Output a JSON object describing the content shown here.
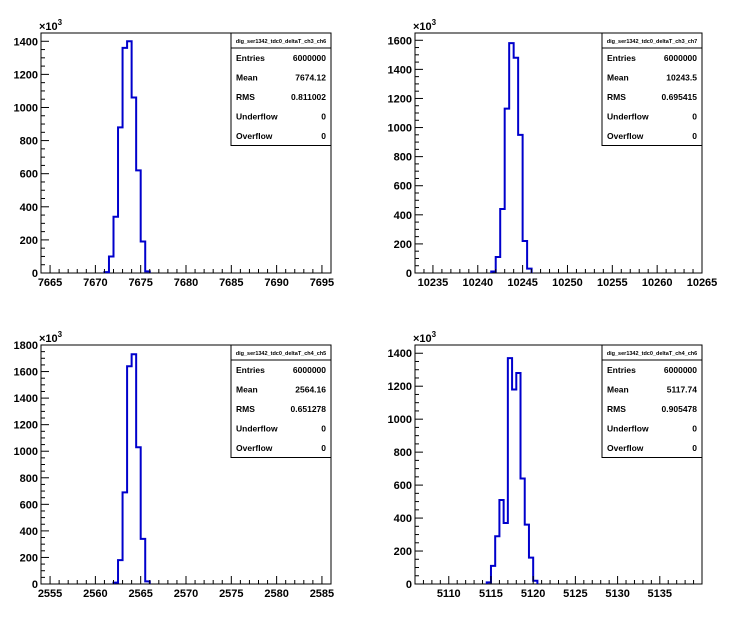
{
  "chart_data": [
    {
      "type": "histogram",
      "stats": {
        "title": "dig_ser1342_tdc0_deltaT_ch3_ch6",
        "rows": [
          {
            "label": "Entries",
            "value": "6000000"
          },
          {
            "label": "Mean",
            "value": "7674.12"
          },
          {
            "label": "RMS",
            "value": "0.811002"
          },
          {
            "label": "Underflow",
            "value": "0"
          },
          {
            "label": "Overflow",
            "value": "0"
          }
        ]
      },
      "xlim": [
        7664,
        7696
      ],
      "ylim": [
        0,
        1450
      ],
      "x_ticks": [
        7665,
        7670,
        7675,
        7680,
        7685,
        7690,
        7695
      ],
      "y_ticks": [
        0,
        200,
        400,
        600,
        800,
        1000,
        1200,
        1400
      ],
      "y_scale_label": "10",
      "y_scale_exp": "3",
      "bin_width": 0.5,
      "bins": [
        [
          7671.0,
          5
        ],
        [
          7671.5,
          100
        ],
        [
          7672.0,
          340
        ],
        [
          7672.5,
          880
        ],
        [
          7673.0,
          1360
        ],
        [
          7673.5,
          1400
        ],
        [
          7674.0,
          1060
        ],
        [
          7674.5,
          620
        ],
        [
          7675.0,
          190
        ],
        [
          7675.5,
          10
        ]
      ]
    },
    {
      "type": "histogram",
      "stats": {
        "title": "dig_ser1342_tdc0_deltaT_ch3_ch7",
        "rows": [
          {
            "label": "Entries",
            "value": "6000000"
          },
          {
            "label": "Mean",
            "value": "10243.5"
          },
          {
            "label": "RMS",
            "value": "0.695415"
          },
          {
            "label": "Underflow",
            "value": "0"
          },
          {
            "label": "Overflow",
            "value": "0"
          }
        ]
      },
      "xlim": [
        10233,
        10265
      ],
      "ylim": [
        0,
        1650
      ],
      "x_ticks": [
        10235,
        10240,
        10245,
        10250,
        10255,
        10260,
        10265
      ],
      "y_ticks": [
        0,
        200,
        400,
        600,
        800,
        1000,
        1200,
        1400,
        1600
      ],
      "y_scale_label": "10",
      "y_scale_exp": "3",
      "bin_width": 0.5,
      "bins": [
        [
          10241.5,
          10
        ],
        [
          10242.0,
          110
        ],
        [
          10242.5,
          440
        ],
        [
          10243.0,
          1130
        ],
        [
          10243.5,
          1580
        ],
        [
          10244.0,
          1480
        ],
        [
          10244.5,
          950
        ],
        [
          10245.0,
          220
        ],
        [
          10245.5,
          30
        ]
      ]
    },
    {
      "type": "histogram",
      "stats": {
        "title": "dig_ser1342_tdc0_deltaT_ch4_ch5",
        "rows": [
          {
            "label": "Entries",
            "value": "6000000"
          },
          {
            "label": "Mean",
            "value": "2564.16"
          },
          {
            "label": "RMS",
            "value": "0.651278"
          },
          {
            "label": "Underflow",
            "value": "0"
          },
          {
            "label": "Overflow",
            "value": "0"
          }
        ]
      },
      "xlim": [
        2554,
        2586
      ],
      "ylim": [
        0,
        1800
      ],
      "x_ticks": [
        2555,
        2560,
        2565,
        2570,
        2575,
        2580,
        2585
      ],
      "y_ticks": [
        0,
        200,
        400,
        600,
        800,
        1000,
        1200,
        1400,
        1600,
        1800
      ],
      "y_scale_label": "10",
      "y_scale_exp": "3",
      "bin_width": 0.5,
      "bins": [
        [
          2562.0,
          10
        ],
        [
          2562.5,
          180
        ],
        [
          2563.0,
          690
        ],
        [
          2563.5,
          1640
        ],
        [
          2564.0,
          1730
        ],
        [
          2564.5,
          1030
        ],
        [
          2565.0,
          340
        ],
        [
          2565.5,
          20
        ]
      ]
    },
    {
      "type": "histogram",
      "stats": {
        "title": "dig_ser1342_tdc0_deltaT_ch4_ch6",
        "rows": [
          {
            "label": "Entries",
            "value": "6000000"
          },
          {
            "label": "Mean",
            "value": "5117.74"
          },
          {
            "label": "RMS",
            "value": "0.905478"
          },
          {
            "label": "Underflow",
            "value": "0"
          },
          {
            "label": "Overflow",
            "value": "0"
          }
        ]
      },
      "xlim": [
        5106,
        5140
      ],
      "ylim": [
        0,
        1450
      ],
      "x_ticks": [
        5110,
        5115,
        5120,
        5125,
        5130,
        5135
      ],
      "y_ticks": [
        0,
        200,
        400,
        600,
        800,
        1000,
        1200,
        1400
      ],
      "y_scale_label": "10",
      "y_scale_exp": "3",
      "bin_width": 0.5,
      "bins": [
        [
          5114.5,
          10
        ],
        [
          5115.0,
          110
        ],
        [
          5115.5,
          290
        ],
        [
          5116.0,
          510
        ],
        [
          5116.5,
          370
        ],
        [
          5117.0,
          1370
        ],
        [
          5117.5,
          1180
        ],
        [
          5118.0,
          1280
        ],
        [
          5118.5,
          640
        ],
        [
          5119.0,
          360
        ],
        [
          5119.5,
          160
        ],
        [
          5120.0,
          20
        ]
      ]
    }
  ]
}
